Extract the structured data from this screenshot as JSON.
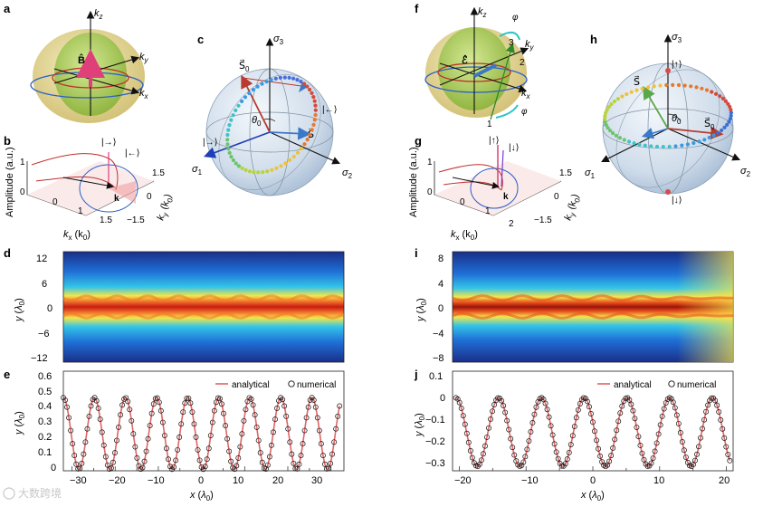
{
  "panels": {
    "a": {
      "label": "a",
      "axes": {
        "kz": "k",
        "kz_sub": "z",
        "ky": "k",
        "ky_sub": "y",
        "kx": "k",
        "kx_sub": "x"
      },
      "vector": "B̂"
    },
    "b": {
      "label": "b",
      "ylabel": "Amplitude (a.u.)",
      "zticks": [
        "1",
        "0"
      ],
      "kyticks": [
        "1.5",
        "0",
        "−1.5"
      ],
      "kxticks": [
        "0",
        "1",
        "1.5"
      ],
      "kx_label": "k",
      "kx_label_sub": "x",
      "kx_unit": " (k",
      "kx_unit_sub": "0",
      "ky_label": "k",
      "ky_label_sub": "y",
      "states": [
        "|→⟩",
        "|←⟩"
      ],
      "k_label": "k"
    },
    "c": {
      "label": "c",
      "s1": "σ",
      "s1_sub": "1",
      "s2": "σ",
      "s2_sub": "2",
      "s3": "σ",
      "s3_sub": "3",
      "s0": "S⃗",
      "s0_sub": "0",
      "s": "S⃗",
      "theta": "θ",
      "theta_sub": "0",
      "ket_right": "|→⟩",
      "ket_left": "|←⟩"
    },
    "d": {
      "label": "d",
      "ylabel": "y",
      "yunit": "λ",
      "yunit_sub": "0",
      "yticks": [
        "12",
        "6",
        "0",
        "−6",
        "−12"
      ]
    },
    "e": {
      "label": "e",
      "ylabel": "y",
      "yunit": "λ",
      "yunit_sub": "0",
      "yticks": [
        "0.6",
        "0.5",
        "0.4",
        "0.3",
        "0.2",
        "0.1",
        "0"
      ],
      "xticks": [
        "−30",
        "−20",
        "−10",
        "0",
        "10",
        "20",
        "30"
      ],
      "xlabel": "x",
      "xunit": "λ",
      "xunit_sub": "0",
      "legend": [
        "analytical",
        "numerical"
      ]
    },
    "f": {
      "label": "f",
      "axes": {
        "kz": "k",
        "kz_sub": "z",
        "ky": "k",
        "ky_sub": "y",
        "kx": "k",
        "kx_sub": "x"
      },
      "vector": "ℰ̂",
      "phi": "φ",
      "nums": [
        "1",
        "2",
        "3"
      ]
    },
    "g": {
      "label": "g",
      "ylabel": "Amplitude (a.u.)",
      "zticks": [
        "1",
        "0"
      ],
      "kyticks": [
        "1.5",
        "0",
        "−1.5"
      ],
      "kxticks": [
        "0",
        "1",
        "2"
      ],
      "kx_label": "k",
      "kx_label_sub": "x",
      "kx_unit": " (k",
      "kx_unit_sub": "0",
      "ky_label": "k",
      "ky_label_sub": "y",
      "states": [
        "|↑⟩",
        "|↓⟩"
      ],
      "k_label": "k"
    },
    "h": {
      "label": "h",
      "s1": "σ",
      "s1_sub": "1",
      "s2": "σ",
      "s2_sub": "2",
      "s3": "σ",
      "s3_sub": "3",
      "s0": "S⃗",
      "s0_sub": "0",
      "s": "S⃗",
      "theta": "θ",
      "theta_sub": "0",
      "ket_up": "|↑⟩",
      "ket_down": "|↓⟩"
    },
    "i": {
      "label": "i",
      "ylabel": "y",
      "yunit": "λ",
      "yunit_sub": "0",
      "yticks": [
        "8",
        "4",
        "0",
        "−4",
        "−8"
      ]
    },
    "j": {
      "label": "j",
      "ylabel": "y",
      "yunit": "λ",
      "yunit_sub": "0",
      "yticks": [
        "0.1",
        "0",
        "−0.1",
        "−0.2",
        "−0.3"
      ],
      "xticks": [
        "−20",
        "−10",
        "0",
        "10",
        "20"
      ],
      "xlabel": "x",
      "xunit": "λ",
      "xunit_sub": "0",
      "legend": [
        "analytical",
        "numerical"
      ]
    }
  },
  "watermark": "大数跨境",
  "colors": {
    "red": "#d23a2a",
    "blue": "#2a5fc8",
    "green": "#6cb33f",
    "pink": "#e0407a",
    "analytical": "#e06666"
  },
  "chart_data": [
    {
      "type": "line",
      "panel": "e",
      "series": [
        {
          "name": "analytical"
        },
        {
          "name": "numerical"
        }
      ],
      "xlim": [
        -32,
        33
      ],
      "ylim": [
        -0.02,
        0.62
      ],
      "amplitude": 0.23,
      "center": 0.22,
      "period": 7.2,
      "x_start": -32,
      "x_end": 32
    },
    {
      "type": "line",
      "panel": "j",
      "series": [
        {
          "name": "analytical"
        },
        {
          "name": "numerical"
        }
      ],
      "xlim": [
        -21,
        21
      ],
      "ylim": [
        -0.33,
        0.12
      ],
      "amplitude": 0.155,
      "center": -0.155,
      "period": 6.4,
      "x_start": -20.5,
      "x_end": 20.5
    }
  ]
}
